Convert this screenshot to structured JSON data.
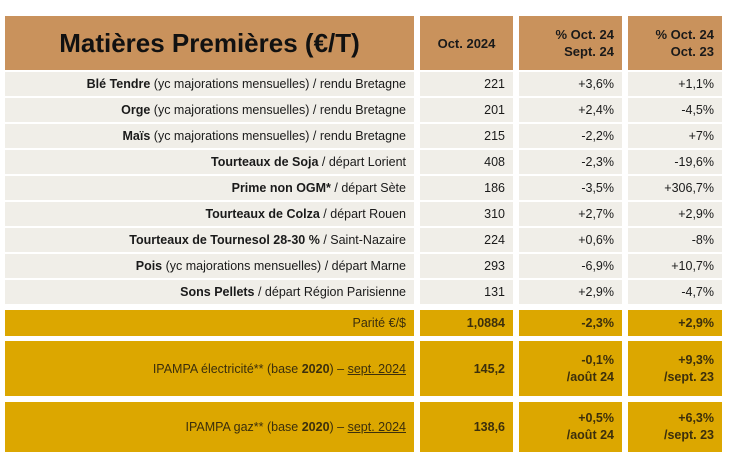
{
  "header": {
    "title": "Matières Premières (€/T)",
    "col_value": "Oct. 2024",
    "col_m_1": "% Oct. 24",
    "col_m_2": "Sept. 24",
    "col_y_1": "% Oct. 24",
    "col_y_2": "Oct. 23"
  },
  "rows": [
    {
      "name": "Blé Tendre",
      "detail": " (yc majorations mensuelles) / rendu Bretagne",
      "value": "221",
      "m": "+3,6%",
      "y": "+1,1%"
    },
    {
      "name": "Orge",
      "detail": " (yc majorations mensuelles) / rendu Bretagne",
      "value": "201",
      "m": "+2,4%",
      "y": "-4,5%"
    },
    {
      "name": "Maïs",
      "detail": " (yc majorations mensuelles) / rendu Bretagne",
      "value": "215",
      "m": "-2,2%",
      "y": "+7%"
    },
    {
      "name": "Tourteaux de Soja",
      "detail": " / départ Lorient",
      "value": "408",
      "m": "-2,3%",
      "y": "-19,6%"
    },
    {
      "name": "Prime non OGM*",
      "detail": " / départ Sète",
      "value": "186",
      "m": "-3,5%",
      "y": "+306,7%"
    },
    {
      "name": "Tourteaux de Colza",
      "detail": " / départ Rouen",
      "value": "310",
      "m": "+2,7%",
      "y": "+2,9%"
    },
    {
      "name": "Tourteaux de Tournesol 28-30 %",
      "detail": " / Saint-Nazaire",
      "value": "224",
      "m": "+0,6%",
      "y": "-8%"
    },
    {
      "name": "Pois",
      "detail": " (yc majorations mensuelles) / départ Marne",
      "value": "293",
      "m": "-6,9%",
      "y": "+10,7%"
    },
    {
      "name": "Sons Pellets",
      "detail": " / départ Région Parisienne",
      "value": "131",
      "m": "+2,9%",
      "y": "-4,7%"
    }
  ],
  "parite": {
    "label": "Parité €/$",
    "value": "1,0884",
    "m": "-2,3%",
    "y": "+2,9%"
  },
  "ipampa": [
    {
      "pre": "IPAMPA électricité** (base ",
      "base": "2020",
      "post": ") – ",
      "date": "sept. 2024",
      "value": "145,2",
      "m": "-0,1%",
      "m_ref": "/août 24",
      "y": "+9,3%",
      "y_ref": "/sept. 23"
    },
    {
      "pre": "IPAMPA gaz** (base ",
      "base": "2020",
      "post": ") – ",
      "date": "sept. 2024",
      "value": "138,6",
      "m": "+0,5%",
      "m_ref": "/août 24",
      "y": "+6,3%",
      "y_ref": "/sept. 23"
    }
  ],
  "colors": {
    "header": "#c9925c",
    "row": "#f0eee8",
    "gold": "#dca700"
  }
}
